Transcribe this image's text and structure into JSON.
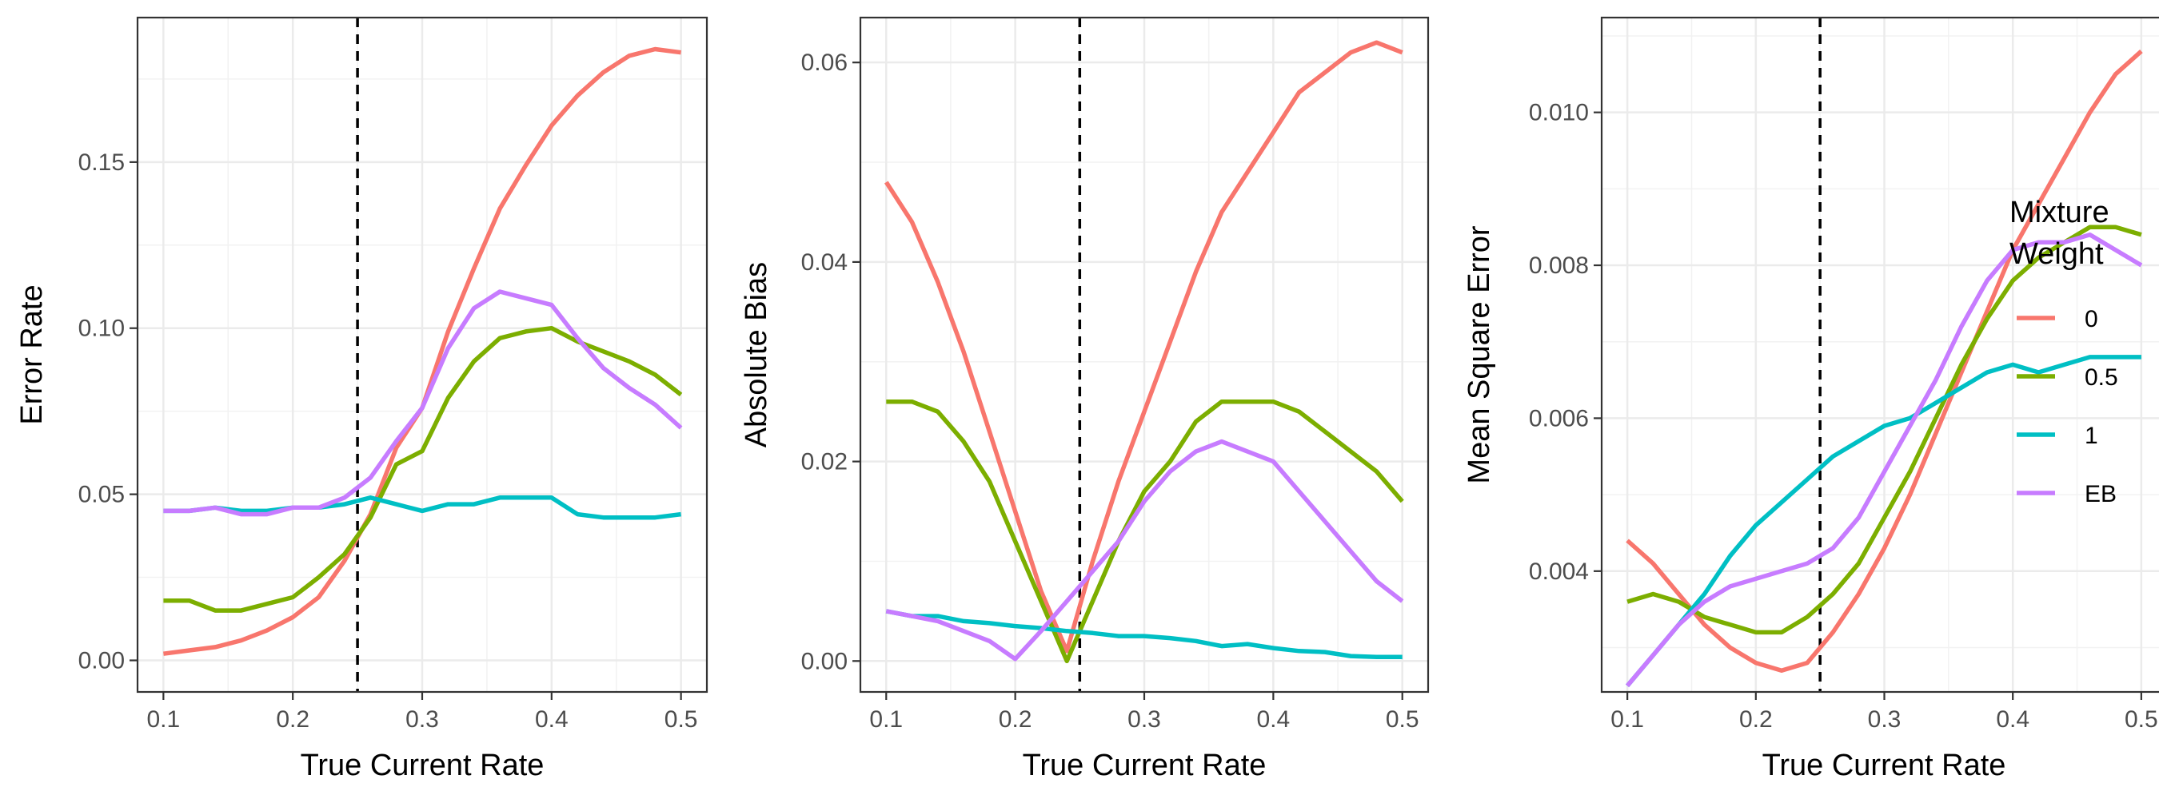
{
  "legend": {
    "title_line1": "Mixture",
    "title_line2": "Weight",
    "items": [
      {
        "label": "0",
        "color": "#F8766D"
      },
      {
        "label": "0.5",
        "color": "#7CAE00"
      },
      {
        "label": "1",
        "color": "#00BFC4"
      },
      {
        "label": "EB",
        "color": "#C77CFF"
      }
    ]
  },
  "chart_data": [
    {
      "type": "line",
      "xlabel": "True Current Rate",
      "ylabel": "Error Rate",
      "xlim": [
        0.08,
        0.52
      ],
      "ylim": [
        -0.0095,
        0.1935
      ],
      "xticks": [
        0.1,
        0.2,
        0.3,
        0.4,
        0.5
      ],
      "xtick_labels": [
        "0.1",
        "0.2",
        "0.3",
        "0.4",
        "0.5"
      ],
      "yticks": [
        0.0,
        0.05,
        0.1,
        0.15
      ],
      "ytick_labels": [
        "0.00",
        "0.05",
        "0.10",
        "0.15"
      ],
      "vline": 0.25,
      "x": [
        0.1,
        0.12,
        0.14,
        0.16,
        0.18,
        0.2,
        0.22,
        0.24,
        0.26,
        0.28,
        0.3,
        0.32,
        0.34,
        0.36,
        0.38,
        0.4,
        0.42,
        0.44,
        0.46,
        0.48,
        0.5
      ],
      "series": [
        {
          "name": "0",
          "values": [
            0.002,
            0.003,
            0.004,
            0.006,
            0.009,
            0.013,
            0.019,
            0.03,
            0.044,
            0.064,
            0.076,
            0.099,
            0.118,
            0.136,
            0.149,
            0.161,
            0.17,
            0.177,
            0.182,
            0.184,
            0.183
          ]
        },
        {
          "name": "0.5",
          "values": [
            0.018,
            0.018,
            0.015,
            0.015,
            0.017,
            0.019,
            0.025,
            0.032,
            0.043,
            0.059,
            0.063,
            0.079,
            0.09,
            0.097,
            0.099,
            0.1,
            0.096,
            0.093,
            0.09,
            0.086,
            0.08
          ]
        },
        {
          "name": "1",
          "values": [
            0.045,
            0.045,
            0.046,
            0.045,
            0.045,
            0.046,
            0.046,
            0.047,
            0.049,
            0.047,
            0.045,
            0.047,
            0.047,
            0.049,
            0.049,
            0.049,
            0.044,
            0.043,
            0.043,
            0.043,
            0.044
          ]
        },
        {
          "name": "EB",
          "values": [
            0.045,
            0.045,
            0.046,
            0.044,
            0.044,
            0.046,
            0.046,
            0.049,
            0.055,
            0.066,
            0.076,
            0.094,
            0.106,
            0.111,
            0.109,
            0.107,
            0.097,
            0.088,
            0.082,
            0.077,
            0.07
          ]
        }
      ]
    },
    {
      "type": "line",
      "xlabel": "True Current Rate",
      "ylabel": "Absolute Bias",
      "xlim": [
        0.08,
        0.52
      ],
      "ylim": [
        -0.0031,
        0.0645
      ],
      "xticks": [
        0.1,
        0.2,
        0.3,
        0.4,
        0.5
      ],
      "xtick_labels": [
        "0.1",
        "0.2",
        "0.3",
        "0.4",
        "0.5"
      ],
      "yticks": [
        0.0,
        0.02,
        0.04,
        0.06
      ],
      "ytick_labels": [
        "0.00",
        "0.02",
        "0.04",
        "0.06"
      ],
      "vline": 0.25,
      "x": [
        0.1,
        0.12,
        0.14,
        0.16,
        0.18,
        0.2,
        0.22,
        0.24,
        0.26,
        0.28,
        0.3,
        0.32,
        0.34,
        0.36,
        0.38,
        0.4,
        0.42,
        0.44,
        0.46,
        0.48,
        0.5
      ],
      "series": [
        {
          "name": "0",
          "values": [
            0.048,
            0.044,
            0.038,
            0.031,
            0.023,
            0.015,
            0.007,
            0.001,
            0.01,
            0.018,
            0.025,
            0.032,
            0.039,
            0.045,
            0.049,
            0.053,
            0.057,
            0.059,
            0.061,
            0.062,
            0.061
          ]
        },
        {
          "name": "0.5",
          "values": [
            0.026,
            0.026,
            0.025,
            0.022,
            0.018,
            0.012,
            0.006,
            0.0,
            0.006,
            0.012,
            0.017,
            0.02,
            0.024,
            0.026,
            0.026,
            0.026,
            0.025,
            0.023,
            0.021,
            0.019,
            0.016
          ]
        },
        {
          "name": "1",
          "values": [
            0.005,
            0.0045,
            0.0045,
            0.004,
            0.0038,
            0.0035,
            0.0033,
            0.003,
            0.0028,
            0.0025,
            0.0025,
            0.0023,
            0.002,
            0.0015,
            0.0017,
            0.0013,
            0.001,
            0.0009,
            0.0005,
            0.0004,
            0.0004
          ]
        },
        {
          "name": "EB",
          "values": [
            0.005,
            0.0045,
            0.004,
            0.003,
            0.002,
            0.0002,
            0.003,
            0.006,
            0.009,
            0.012,
            0.016,
            0.019,
            0.021,
            0.022,
            0.021,
            0.02,
            0.017,
            0.014,
            0.011,
            0.008,
            0.006
          ]
        }
      ]
    },
    {
      "type": "line",
      "xlabel": "True Current Rate",
      "ylabel": "Mean Square Error",
      "xlim": [
        0.08,
        0.52
      ],
      "ylim": [
        0.00242,
        0.01124
      ],
      "xticks": [
        0.1,
        0.2,
        0.3,
        0.4,
        0.5
      ],
      "xtick_labels": [
        "0.1",
        "0.2",
        "0.3",
        "0.4",
        "0.5"
      ],
      "yticks": [
        0.004,
        0.006,
        0.008,
        0.01
      ],
      "ytick_labels": [
        "0.004",
        "0.006",
        "0.008",
        "0.010"
      ],
      "vline": 0.25,
      "x": [
        0.1,
        0.12,
        0.14,
        0.16,
        0.18,
        0.2,
        0.22,
        0.24,
        0.26,
        0.28,
        0.3,
        0.32,
        0.34,
        0.36,
        0.38,
        0.4,
        0.42,
        0.44,
        0.46,
        0.48,
        0.5
      ],
      "series": [
        {
          "name": "0",
          "values": [
            0.0044,
            0.0041,
            0.0037,
            0.0033,
            0.003,
            0.0028,
            0.0027,
            0.0028,
            0.0032,
            0.0037,
            0.0043,
            0.005,
            0.0058,
            0.0066,
            0.0074,
            0.0082,
            0.0088,
            0.0094,
            0.01,
            0.0105,
            0.0108
          ]
        },
        {
          "name": "0.5",
          "values": [
            0.0036,
            0.0037,
            0.0036,
            0.0034,
            0.0033,
            0.0032,
            0.0032,
            0.0034,
            0.0037,
            0.0041,
            0.0047,
            0.0053,
            0.006,
            0.0067,
            0.0073,
            0.0078,
            0.0081,
            0.0083,
            0.0085,
            0.0085,
            0.0084
          ]
        },
        {
          "name": "1",
          "values": [
            0.0025,
            0.0029,
            0.0033,
            0.0037,
            0.0042,
            0.0046,
            0.0049,
            0.0052,
            0.0055,
            0.0057,
            0.0059,
            0.006,
            0.0062,
            0.0064,
            0.0066,
            0.0067,
            0.0066,
            0.0067,
            0.0068,
            0.0068,
            0.0068
          ]
        },
        {
          "name": "EB",
          "values": [
            0.0025,
            0.0029,
            0.0033,
            0.0036,
            0.0038,
            0.0039,
            0.004,
            0.0041,
            0.0043,
            0.0047,
            0.0053,
            0.0059,
            0.0065,
            0.0072,
            0.0078,
            0.0082,
            0.0083,
            0.0083,
            0.0084,
            0.0082,
            0.008
          ]
        }
      ]
    }
  ]
}
